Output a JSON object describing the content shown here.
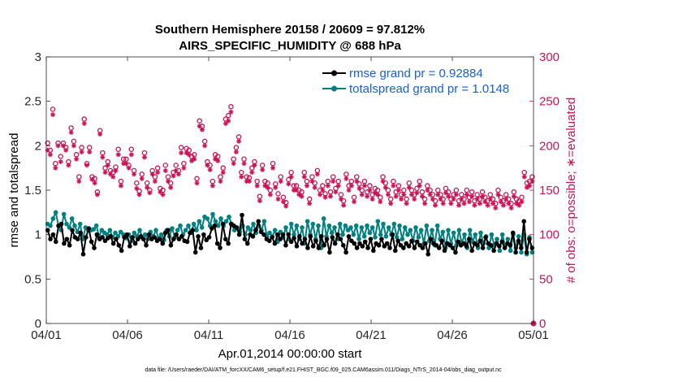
{
  "chart_data": {
    "type": "line",
    "title": "Southern Hemisphere 20158 / 20609 = 97.812%",
    "subtitle": "AIRS_SPECIFIC_HUMIDITY @ 688 hPa",
    "xlabel": "Apr.01,2014 00:00:00 start",
    "ylabel_left": "rmse and totalspread",
    "ylabel_right": "# of obs: o=possible; ∗=evaluated",
    "footnote": "data file: /Users/raeder/DAI/ATM_forcXX/CAM6_setup/f.e21.FHIST_BGC.f09_025.CAM6assim.011/Diags_NTrS_2014-04/obs_diag_output.nc",
    "x_range": [
      0,
      30
    ],
    "x_ticks": [
      {
        "value": 0,
        "label": "04/01"
      },
      {
        "value": 5,
        "label": "04/06"
      },
      {
        "value": 10,
        "label": "04/11"
      },
      {
        "value": 15,
        "label": "04/16"
      },
      {
        "value": 20,
        "label": "04/21"
      },
      {
        "value": 25,
        "label": "04/26"
      },
      {
        "value": 30,
        "label": "05/01"
      }
    ],
    "ylim_left": [
      0,
      3
    ],
    "left_ticks": [
      "0",
      "0.5",
      "1",
      "1.5",
      "2",
      "2.5",
      "3"
    ],
    "ylim_right": [
      0,
      300
    ],
    "right_ticks": [
      "0",
      "50",
      "100",
      "150",
      "200",
      "250",
      "300"
    ],
    "colors": {
      "rmse": "#000000",
      "spread": "#008080",
      "obs": "#cc1155",
      "legend_text": "#1660d6"
    },
    "series": [
      {
        "name": "rmse grand pr = 0.92884",
        "axis": "left",
        "values": [
          1.05,
          0.95,
          1.0,
          0.92,
          1.1,
          1.12,
          0.9,
          0.95,
          0.88,
          1.05,
          0.97,
          0.95,
          1.02,
          0.78,
          0.97,
          1.07,
          0.92,
          0.85,
          1.0,
          0.95,
          0.97,
          0.93,
          0.96,
          0.98,
          0.9,
          0.95,
          0.88,
          0.82,
          0.97,
          1.0,
          0.87,
          0.97,
          0.9,
          0.95,
          0.98,
          0.95,
          0.88,
          1.0,
          0.95,
          0.97,
          0.93,
          0.95,
          0.9,
          1.02,
          1.05,
          0.88,
          0.95,
          1.0,
          0.95,
          0.98,
          0.93,
          0.92,
          1.02,
          1.05,
          0.8,
          0.98,
          0.85,
          1.0,
          0.94,
          0.97,
          1.07,
          1.1,
          0.9,
          0.85,
          1.12,
          0.95,
          0.9,
          1.12,
          1.1,
          1.08,
          1.0,
          1.22,
          0.95,
          0.9,
          1.0,
          0.98,
          1.05,
          1.15,
          1.03,
          1.0,
          0.95,
          0.93,
          0.97,
          0.9,
          1.0,
          0.95,
          1.0,
          0.88,
          1.0,
          0.92,
          0.96,
          0.87,
          0.98,
          0.9,
          0.95,
          0.85,
          0.98,
          0.87,
          0.93,
          0.85,
          0.98,
          0.88,
          0.95,
          0.8,
          0.97,
          0.9,
          1.0,
          0.95,
          0.88,
          0.8,
          0.98,
          0.93,
          0.9,
          0.85,
          0.9,
          0.87,
          0.92,
          0.85,
          0.95,
          0.82,
          0.9,
          0.88,
          0.95,
          0.87,
          0.9,
          0.85,
          1.0,
          0.82,
          0.93,
          0.88,
          0.85,
          0.9,
          0.87,
          0.93,
          0.85,
          0.92,
          0.88,
          0.85,
          0.9,
          0.78,
          0.95,
          0.9,
          0.88,
          0.85,
          0.93,
          0.82,
          0.9,
          0.88,
          0.85,
          0.8,
          0.92,
          0.88,
          0.9,
          0.87,
          0.95,
          0.82,
          0.9,
          0.88,
          0.93,
          0.85,
          0.97,
          0.9,
          0.88,
          0.82,
          0.9,
          0.87,
          0.92,
          0.85,
          0.9,
          0.88,
          1.02,
          0.8,
          0.93,
          0.85,
          1.15,
          0.8,
          0.95,
          0.85
        ]
      },
      {
        "name": "totalspread grand pr = 1.0148",
        "axis": "left",
        "values": [
          1.12,
          1.1,
          1.18,
          1.25,
          1.1,
          1.05,
          1.23,
          1.12,
          1.08,
          1.18,
          1.1,
          1.03,
          1.12,
          0.95,
          1.08,
          1.05,
          1.05,
          1.06,
          1.1,
          0.98,
          1.05,
          1.02,
          1.0,
          1.05,
          0.97,
          1.02,
          0.98,
          1.03,
          1.0,
          0.96,
          1.0,
          0.93,
          1.02,
          0.98,
          1.05,
          0.97,
          1.0,
          0.95,
          1.03,
          0.98,
          1.05,
          0.96,
          1.0,
          0.94,
          1.05,
          0.98,
          1.07,
          0.97,
          1.05,
          1.1,
          1.0,
          1.05,
          1.1,
          1.02,
          1.12,
          1.05,
          1.15,
          1.08,
          1.2,
          1.18,
          1.1,
          1.23,
          1.15,
          1.1,
          1.18,
          1.1,
          1.15,
          1.2,
          1.12,
          1.05,
          1.08,
          1.03,
          1.1,
          1.0,
          1.08,
          1.05,
          1.12,
          1.02,
          1.1,
          1.05,
          1.15,
          0.98,
          1.02,
          0.98,
          1.05,
          0.92,
          1.03,
          0.97,
          1.08,
          0.95,
          1.12,
          1.0,
          1.1,
          0.95,
          1.08,
          0.9,
          1.15,
          1.0,
          1.12,
          0.95,
          1.1,
          0.85,
          1.18,
          0.98,
          1.1,
          1.02,
          1.08,
          0.95,
          1.12,
          1.0,
          1.1,
          1.05,
          1.08,
          1.0,
          1.1,
          0.95,
          1.08,
          0.98,
          1.1,
          1.02,
          1.08,
          0.97,
          1.15,
          1.0,
          1.12,
          0.98,
          1.08,
          1.0,
          1.12,
          0.97,
          1.1,
          0.95,
          1.08,
          1.0,
          1.05,
          0.93,
          1.08,
          0.97,
          1.05,
          0.9,
          1.1,
          0.93,
          1.05,
          0.88,
          1.1,
          0.95,
          1.03,
          0.85,
          1.05,
          0.9,
          1.02,
          0.88,
          1.05,
          0.9,
          1.0,
          0.85,
          1.05,
          0.92,
          1.0,
          0.85,
          1.02,
          0.9,
          0.98,
          0.85,
          1.0,
          0.88,
          0.95,
          0.82,
          1.0,
          0.87,
          0.95,
          0.82,
          1.0,
          0.85,
          0.98,
          0.8,
          1.0,
          0.78,
          0.97,
          0.8
        ]
      },
      {
        "name": "obs possible",
        "axis": "right",
        "marker": "circle",
        "values": [
          203,
          195,
          241,
          180,
          203,
          188,
          203,
          198,
          182,
          220,
          205,
          190,
          165,
          198,
          230,
          180,
          198,
          165,
          163,
          148,
          217,
          192,
          175,
          182,
          172,
          170,
          176,
          196,
          160,
          185,
          185,
          178,
          196,
          172,
          158,
          149,
          168,
          192,
          158,
          150,
          172,
          165,
          175,
          152,
          150,
          178,
          165,
          158,
          170,
          178,
          172,
          198,
          180,
          197,
          195,
          188,
          190,
          163,
          228,
          222,
          205,
          182,
          178,
          160,
          190,
          188,
          165,
          175,
          230,
          234,
          244,
          185,
          198,
          210,
          170,
          185,
          165,
          164,
          175,
          182,
          160,
          143,
          178,
          160,
          158,
          150,
          180,
          157,
          146,
          165,
          142,
          136,
          162,
          170,
          155,
          155,
          150,
          148,
          170,
          160,
          140,
          165,
          158,
          172,
          150,
          155,
          146,
          160,
          148,
          165,
          152,
          160,
          145,
          138,
          168,
          155,
          160,
          142,
          165,
          157,
          150,
          160,
          148,
          155,
          145,
          152,
          150,
          142,
          165,
          158,
          150,
          140,
          160,
          148,
          155,
          145,
          150,
          140,
          158,
          150,
          145,
          152,
          160,
          148,
          140,
          155,
          150,
          145,
          138,
          150,
          145,
          140,
          152,
          148,
          140,
          145,
          150,
          138,
          145,
          140,
          150,
          142,
          148,
          138,
          145,
          140,
          148,
          142,
          138,
          145,
          140,
          135,
          150,
          142,
          138,
          145,
          140,
          135,
          148,
          140,
          138,
          142,
          170,
          158,
          160,
          165
        ]
      },
      {
        "name": "obs evaluated",
        "axis": "right",
        "marker": "star",
        "values": [
          195,
          190,
          235,
          175,
          200,
          182,
          200,
          195,
          178,
          215,
          200,
          185,
          160,
          193,
          225,
          178,
          193,
          162,
          158,
          145,
          213,
          187,
          170,
          178,
          168,
          165,
          172,
          190,
          155,
          180,
          180,
          175,
          190,
          168,
          152,
          145,
          163,
          187,
          153,
          147,
          168,
          160,
          170,
          148,
          145,
          172,
          160,
          153,
          166,
          172,
          168,
          192,
          175,
          192,
          190,
          183,
          185,
          158,
          222,
          218,
          200,
          178,
          173,
          155,
          185,
          183,
          160,
          170,
          225,
          228,
          238,
          180,
          193,
          205,
          165,
          180,
          160,
          160,
          170,
          178,
          155,
          138,
          173,
          155,
          153,
          145,
          175,
          153,
          140,
          160,
          137,
          132,
          157,
          165,
          150,
          150,
          145,
          143,
          165,
          155,
          135,
          160,
          153,
          168,
          145,
          150,
          142,
          155,
          143,
          160,
          148,
          155,
          140,
          133,
          163,
          150,
          155,
          137,
          160,
          152,
          145,
          155,
          143,
          150,
          140,
          147,
          145,
          137,
          160,
          153,
          145,
          135,
          155,
          143,
          150,
          140,
          145,
          135,
          153,
          145,
          140,
          147,
          155,
          143,
          135,
          150,
          145,
          140,
          133,
          145,
          140,
          135,
          147,
          143,
          135,
          140,
          145,
          133,
          140,
          135,
          145,
          137,
          143,
          133,
          140,
          135,
          143,
          137,
          133,
          140,
          135,
          130,
          145,
          137,
          133,
          140,
          135,
          130,
          143,
          135,
          133,
          137,
          165,
          153,
          155,
          160
        ]
      }
    ]
  }
}
